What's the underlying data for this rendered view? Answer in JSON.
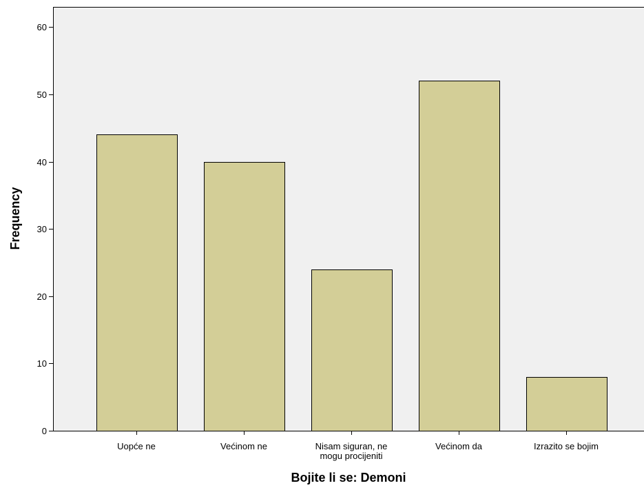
{
  "chart_data": {
    "type": "bar",
    "categories": [
      [
        "Uopće ne"
      ],
      [
        "Većinom ne"
      ],
      [
        "Nisam siguran, ne",
        "mogu procijeniti"
      ],
      [
        "Većinom da"
      ],
      [
        "Izrazito se bojim"
      ]
    ],
    "values": [
      44,
      40,
      24,
      52,
      8
    ],
    "xlabel": "Bojite li se: Demoni",
    "ylabel": "Frequency",
    "ylim": [
      0,
      63
    ],
    "yticks": [
      0,
      10,
      20,
      30,
      40,
      50,
      60
    ],
    "grid": false,
    "colors": {
      "bar_fill": "#d3ce97",
      "plot_background": "#f0f0f0"
    }
  }
}
